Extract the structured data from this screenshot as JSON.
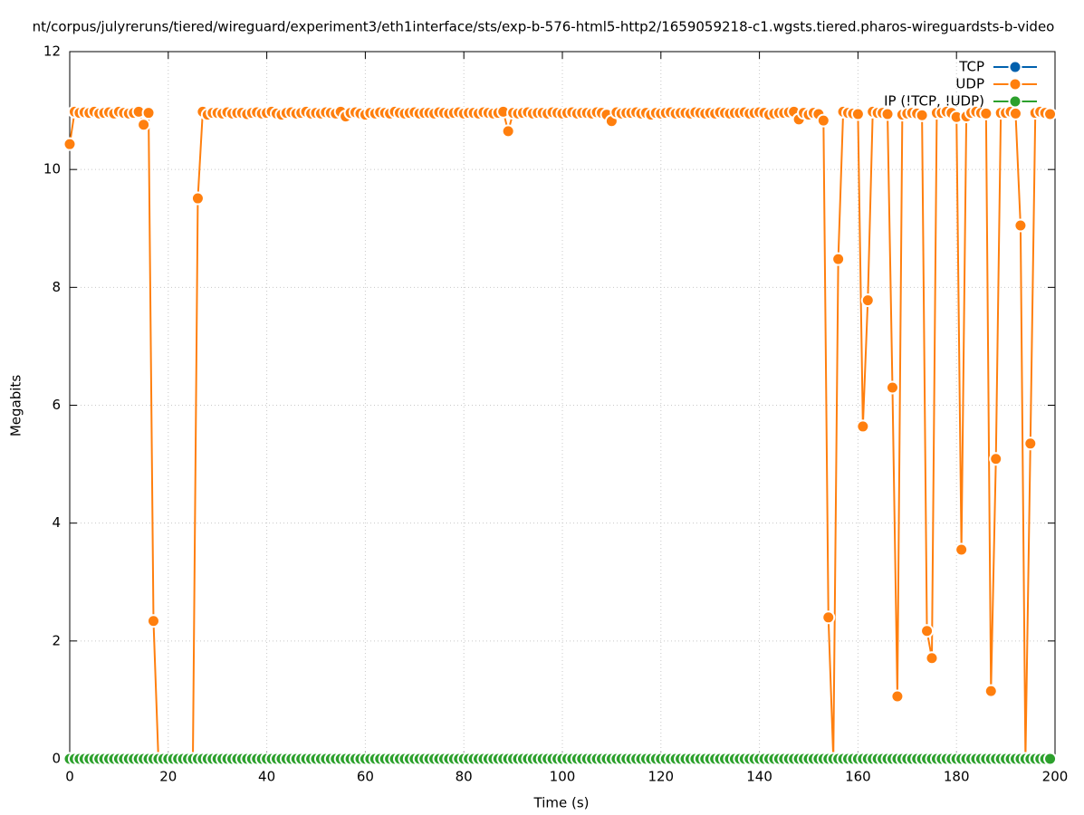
{
  "chart_data": {
    "type": "line",
    "title": "nt/corpus/julyreruns/tiered/wireguard/experiment3/eth1interface/sts/exp-b-576-html5-http2/1659059218-c1.wgsts.tiered.pharos-wireguardsts-b-video",
    "x_label": "Time (s)",
    "y_label": "Megabits",
    "xlim": [
      0,
      200
    ],
    "xticks": [
      0,
      20,
      40,
      60,
      80,
      100,
      120,
      140,
      160,
      180,
      200
    ],
    "ylim": [
      0,
      12
    ],
    "yticks": [
      0,
      2,
      4,
      6,
      8,
      10,
      12
    ],
    "grid": true,
    "legend": "top-right",
    "x": [
      0,
      1,
      2,
      3,
      4,
      5,
      6,
      7,
      8,
      9,
      10,
      11,
      12,
      13,
      14,
      15,
      16,
      17,
      18,
      19,
      20,
      21,
      22,
      23,
      24,
      25,
      26,
      27,
      28,
      29,
      30,
      31,
      32,
      33,
      34,
      35,
      36,
      37,
      38,
      39,
      40,
      41,
      42,
      43,
      44,
      45,
      46,
      47,
      48,
      49,
      50,
      51,
      52,
      53,
      54,
      55,
      56,
      57,
      58,
      59,
      60,
      61,
      62,
      63,
      64,
      65,
      66,
      67,
      68,
      69,
      70,
      71,
      72,
      73,
      74,
      75,
      76,
      77,
      78,
      79,
      80,
      81,
      82,
      83,
      84,
      85,
      86,
      87,
      88,
      89,
      90,
      91,
      92,
      93,
      94,
      95,
      96,
      97,
      98,
      99,
      100,
      101,
      102,
      103,
      104,
      105,
      106,
      107,
      108,
      109,
      110,
      111,
      112,
      113,
      114,
      115,
      116,
      117,
      118,
      119,
      120,
      121,
      122,
      123,
      124,
      125,
      126,
      127,
      128,
      129,
      130,
      131,
      132,
      133,
      134,
      135,
      136,
      137,
      138,
      139,
      140,
      141,
      142,
      143,
      144,
      145,
      146,
      147,
      148,
      149,
      150,
      151,
      152,
      153,
      154,
      155,
      156,
      157,
      158,
      159,
      160,
      161,
      162,
      163,
      164,
      165,
      166,
      167,
      168,
      169,
      170,
      171,
      172,
      173,
      174,
      175,
      176,
      177,
      178,
      179,
      180,
      181,
      182,
      183,
      184,
      185,
      186,
      187,
      188,
      189,
      190,
      191,
      192,
      193,
      194,
      195,
      196,
      197,
      198,
      199
    ],
    "series": [
      {
        "name": "TCP",
        "color": "#0060ad",
        "values": [
          0,
          0,
          0,
          0,
          0,
          0,
          0,
          0,
          0,
          0,
          0,
          0,
          0,
          0,
          0,
          0,
          0,
          0,
          0,
          0,
          0,
          0,
          0,
          0,
          0,
          0,
          0,
          0,
          0,
          0,
          0,
          0,
          0,
          0,
          0,
          0,
          0,
          0,
          0,
          0,
          0,
          0,
          0,
          0,
          0,
          0,
          0,
          0,
          0,
          0,
          0,
          0,
          0,
          0,
          0,
          0,
          0,
          0,
          0,
          0,
          0,
          0,
          0,
          0,
          0,
          0,
          0,
          0,
          0,
          0,
          0,
          0,
          0,
          0,
          0,
          0,
          0,
          0,
          0,
          0,
          0,
          0,
          0,
          0,
          0,
          0,
          0,
          0,
          0,
          0,
          0,
          0,
          0,
          0,
          0,
          0,
          0,
          0,
          0,
          0,
          0,
          0,
          0,
          0,
          0,
          0,
          0,
          0,
          0,
          0,
          0,
          0,
          0,
          0,
          0,
          0,
          0,
          0,
          0,
          0,
          0,
          0,
          0,
          0,
          0,
          0,
          0,
          0,
          0,
          0,
          0,
          0,
          0,
          0,
          0,
          0,
          0,
          0,
          0,
          0,
          0,
          0,
          0,
          0,
          0,
          0,
          0,
          0,
          0,
          0,
          0,
          0,
          0,
          0,
          0,
          0,
          0,
          0,
          0,
          0,
          0,
          0,
          0,
          0,
          0,
          0,
          0,
          0,
          0,
          0,
          0,
          0,
          0,
          0,
          0,
          0,
          0,
          0,
          0,
          0,
          0,
          0,
          0,
          0,
          0,
          0,
          0,
          0,
          0,
          0,
          0,
          0,
          0,
          0,
          0,
          0,
          0,
          0,
          0,
          0
        ]
      },
      {
        "name": "UDP",
        "color": "#ff7f0e",
        "values": [
          10.43,
          10.98,
          10.96,
          10.97,
          10.96,
          10.98,
          10.95,
          10.96,
          10.97,
          10.95,
          10.98,
          10.96,
          10.95,
          10.96,
          10.98,
          10.76,
          10.96,
          2.34,
          0,
          null,
          null,
          null,
          null,
          null,
          null,
          0,
          9.51,
          10.98,
          10.93,
          10.96,
          10.96,
          10.95,
          10.97,
          10.95,
          10.96,
          10.96,
          10.94,
          10.96,
          10.97,
          10.95,
          10.96,
          10.98,
          10.95,
          10.93,
          10.96,
          10.97,
          10.95,
          10.96,
          10.98,
          10.95,
          10.96,
          10.95,
          10.97,
          10.96,
          10.95,
          10.98,
          10.9,
          10.96,
          10.97,
          10.95,
          10.93,
          10.96,
          10.95,
          10.97,
          10.96,
          10.95,
          10.98,
          10.96,
          10.95,
          10.96,
          10.97,
          10.95,
          10.96,
          10.96,
          10.95,
          10.97,
          10.96,
          10.95,
          10.96,
          10.97,
          10.95,
          10.96,
          10.96,
          10.95,
          10.97,
          10.96,
          10.95,
          10.96,
          10.98,
          10.65,
          10.96,
          10.95,
          10.96,
          10.97,
          10.95,
          10.96,
          10.96,
          10.95,
          10.97,
          10.96,
          10.95,
          10.96,
          10.97,
          10.95,
          10.96,
          10.96,
          10.95,
          10.97,
          10.96,
          10.93,
          10.82,
          10.97,
          10.95,
          10.96,
          10.96,
          10.97,
          10.95,
          10.96,
          10.93,
          10.96,
          10.95,
          10.96,
          10.97,
          10.95,
          10.96,
          10.96,
          10.95,
          10.97,
          10.96,
          10.95,
          10.96,
          10.95,
          10.97,
          10.96,
          10.95,
          10.96,
          10.96,
          10.97,
          10.95,
          10.96,
          10.97,
          10.96,
          10.93,
          10.95,
          10.96,
          10.96,
          10.97,
          10.98,
          10.85,
          10.96,
          10.93,
          10.96,
          10.94,
          10.83,
          2.4,
          0,
          8.48,
          10.98,
          10.96,
          10.95,
          10.94,
          5.64,
          7.78,
          10.98,
          10.96,
          10.96,
          10.94,
          6.3,
          1.06,
          10.93,
          10.95,
          10.96,
          10.95,
          10.92,
          2.17,
          1.71,
          10.96,
          10.96,
          10.98,
          10.96,
          10.89,
          3.55,
          10.9,
          10.96,
          10.98,
          10.96,
          10.95,
          1.15,
          5.09,
          10.96,
          10.96,
          10.98,
          10.95,
          9.05,
          0,
          5.35,
          10.96,
          10.98,
          10.96,
          10.94
        ]
      },
      {
        "name": "IP (!TCP, !UDP)",
        "color": "#2ca02c",
        "values": [
          0,
          0,
          0,
          0,
          0,
          0,
          0,
          0,
          0,
          0,
          0,
          0,
          0,
          0,
          0,
          0,
          0,
          0,
          0,
          0,
          0,
          0,
          0,
          0,
          0,
          0,
          0,
          0,
          0,
          0,
          0,
          0,
          0,
          0,
          0,
          0,
          0,
          0,
          0,
          0,
          0,
          0,
          0,
          0,
          0,
          0,
          0,
          0,
          0,
          0,
          0,
          0,
          0,
          0,
          0,
          0,
          0,
          0,
          0,
          0,
          0,
          0,
          0,
          0,
          0,
          0,
          0,
          0,
          0,
          0,
          0,
          0,
          0,
          0,
          0,
          0,
          0,
          0,
          0,
          0,
          0,
          0,
          0,
          0,
          0,
          0,
          0,
          0,
          0,
          0,
          0,
          0,
          0,
          0,
          0,
          0,
          0,
          0,
          0,
          0,
          0,
          0,
          0,
          0,
          0,
          0,
          0,
          0,
          0,
          0,
          0,
          0,
          0,
          0,
          0,
          0,
          0,
          0,
          0,
          0,
          0,
          0,
          0,
          0,
          0,
          0,
          0,
          0,
          0,
          0,
          0,
          0,
          0,
          0,
          0,
          0,
          0,
          0,
          0,
          0,
          0,
          0,
          0,
          0,
          0,
          0,
          0,
          0,
          0,
          0,
          0,
          0,
          0,
          0,
          0,
          0,
          0,
          0,
          0,
          0,
          0,
          0,
          0,
          0,
          0,
          0,
          0,
          0,
          0,
          0,
          0,
          0,
          0,
          0,
          0,
          0,
          0,
          0,
          0,
          0,
          0,
          0,
          0,
          0,
          0,
          0,
          0,
          0,
          0,
          0,
          0,
          0,
          0,
          0,
          0,
          0,
          0,
          0,
          0,
          0
        ]
      }
    ]
  }
}
